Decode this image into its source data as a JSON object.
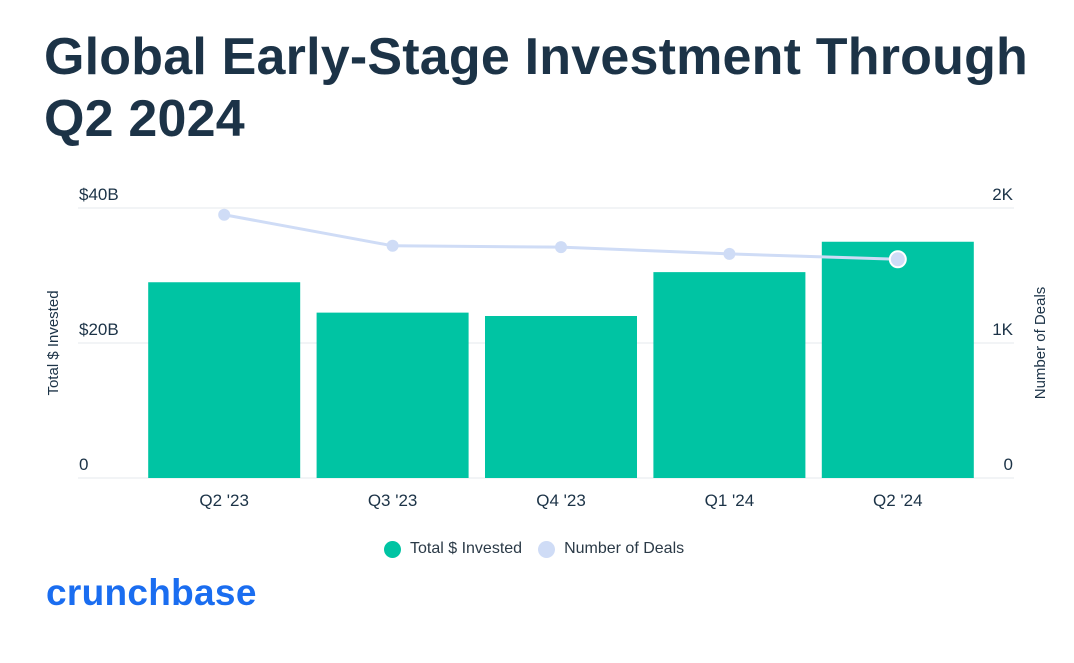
{
  "title": "Global Early-Stage Investment Through Q2 2024",
  "brand": "crunchbase",
  "colors": {
    "bar": "#00c4a3",
    "line": "#cfdcf6",
    "text": "#1c3347",
    "grid": "#e6e9ec",
    "brand": "#1a6df0"
  },
  "chart_data": {
    "type": "bar",
    "categories": [
      "Q2 '23",
      "Q3 '23",
      "Q4 '23",
      "Q1 '24",
      "Q2 '24"
    ],
    "series": [
      {
        "name": "Total $ Invested",
        "axis": "left",
        "type": "bar",
        "values": [
          29,
          24.5,
          24,
          30.5,
          35
        ]
      },
      {
        "name": "Number of Deals",
        "axis": "right",
        "type": "line",
        "values": [
          1950,
          1720,
          1710,
          1660,
          1620
        ]
      }
    ],
    "ylabel": "Total $ Invested",
    "y2label": "Number of Deals",
    "ylim": [
      0,
      40
    ],
    "y2lim": [
      0,
      2000
    ],
    "yticks": [
      {
        "value": 0,
        "label": "0"
      },
      {
        "value": 20,
        "label": "$20B"
      },
      {
        "value": 40,
        "label": "$40B"
      }
    ],
    "y2ticks": [
      {
        "value": 0,
        "label": "0"
      },
      {
        "value": 1000,
        "label": "1K"
      },
      {
        "value": 2000,
        "label": "2K"
      }
    ],
    "legend": [
      "Total $ Invested",
      "Number of Deals"
    ],
    "grid": true
  }
}
